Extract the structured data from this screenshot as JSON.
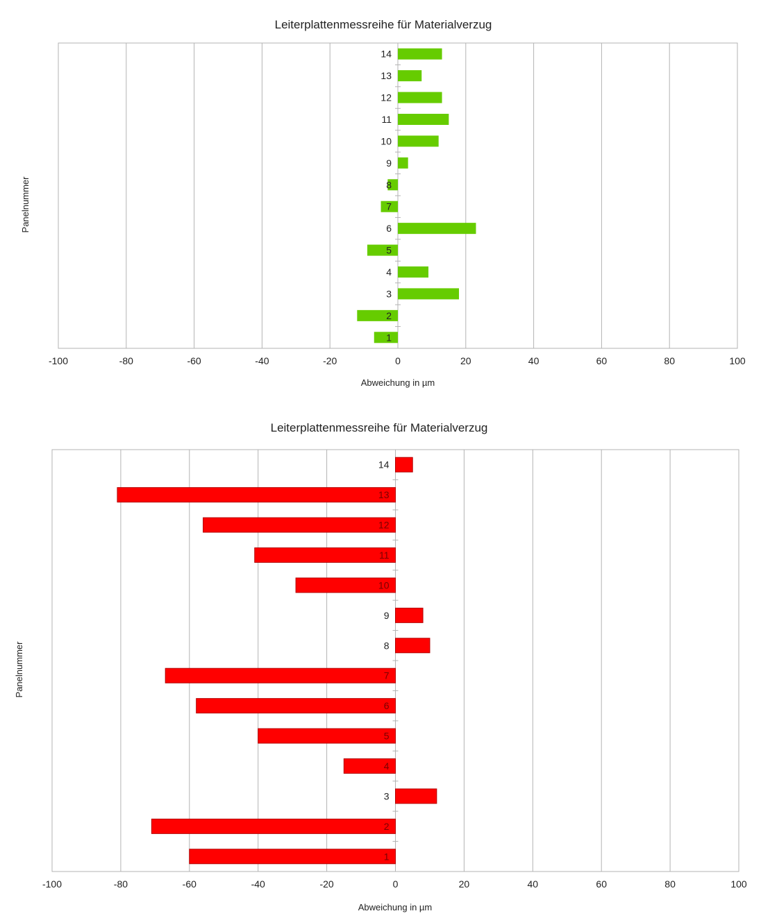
{
  "chart_data": [
    {
      "type": "bar",
      "orientation": "horizontal",
      "title": "Leiterplattenmessreihe für Materialverzug",
      "xlabel": "Abweichung in µm",
      "ylabel": "Panelnummer",
      "xlim": [
        -100,
        100
      ],
      "xticks": [
        "-100",
        "-80",
        "-60",
        "-40",
        "-20",
        "0",
        "20",
        "40",
        "60",
        "80",
        "100"
      ],
      "grid": "vertical",
      "legend": "none",
      "color": "#66cc00",
      "categories": [
        "1",
        "2",
        "3",
        "4",
        "5",
        "6",
        "7",
        "8",
        "9",
        "10",
        "11",
        "12",
        "13",
        "14"
      ],
      "series": [
        {
          "values": [
            -7,
            -12,
            18,
            9,
            -9,
            23,
            -5,
            -3,
            3,
            12,
            15,
            13,
            7,
            13
          ]
        }
      ]
    },
    {
      "type": "bar",
      "orientation": "horizontal",
      "title": "Leiterplattenmessreihe für Materialverzug",
      "xlabel": "Abweichung in µm",
      "ylabel": "Panelnummer",
      "xlim": [
        -100,
        100
      ],
      "xticks": [
        "-100",
        "-80",
        "-60",
        "-40",
        "-20",
        "0",
        "20",
        "40",
        "60",
        "80",
        "100"
      ],
      "grid": "vertical",
      "legend": "none",
      "color": "#ff0000",
      "categories": [
        "1",
        "2",
        "3",
        "4",
        "5",
        "6",
        "7",
        "8",
        "9",
        "10",
        "11",
        "12",
        "13",
        "14"
      ],
      "series": [
        {
          "values": [
            -60,
            -71,
            12,
            -15,
            -40,
            -58,
            -67,
            10,
            8,
            -29,
            -41,
            -56,
            -81,
            5
          ]
        }
      ]
    }
  ]
}
